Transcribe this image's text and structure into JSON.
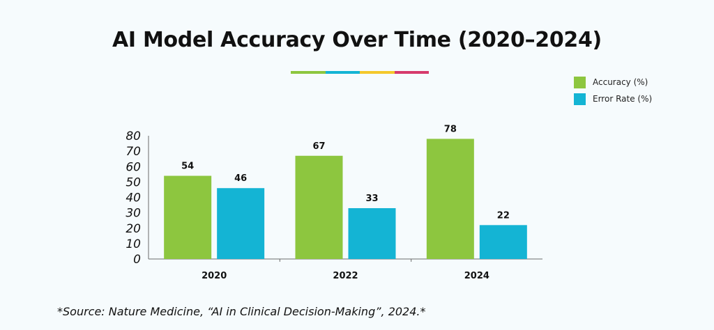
{
  "chart_data": {
    "type": "bar",
    "title": "AI Model Accuracy Over Time (2020–2024)",
    "categories": [
      "2020",
      "2022",
      "2024"
    ],
    "series": [
      {
        "name": "Accuracy (%)",
        "values": [
          54,
          67,
          78
        ],
        "color": "#8dc63f"
      },
      {
        "name": "Error Rate (%)",
        "values": [
          46,
          33,
          22
        ],
        "color": "#14b4d4"
      }
    ],
    "yticks": [
      "0",
      "10",
      "20",
      "30",
      "40",
      "50",
      "60",
      "70",
      "80"
    ],
    "ylim": [
      0,
      80
    ],
    "xlabel": "",
    "ylabel": "",
    "grid": false,
    "legend_position": "top-right",
    "source": "*Source: Nature Medicine, “AI in Clinical Decision-Making”, 2024.*"
  },
  "accent_colors": [
    "#8dc63f",
    "#14b4d4",
    "#f4c82c",
    "#d63a6c"
  ]
}
